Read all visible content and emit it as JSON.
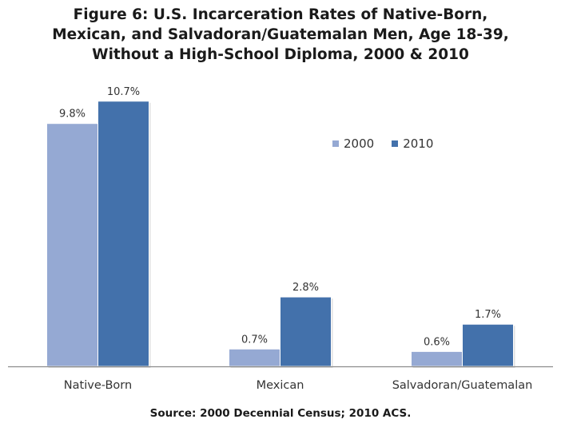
{
  "chart_data": {
    "type": "bar",
    "title_lines": [
      "Figure 6: U.S. Incarceration Rates of Native-Born,",
      "Mexican, and Salvadoran/Guatemalan Men, Age 18-39,",
      "Without a High-School Diploma, 2000 & 2010"
    ],
    "categories": [
      "Native-Born",
      "Mexican",
      "Salvadoran/Guatemalan"
    ],
    "series": [
      {
        "name": "2000",
        "values": [
          9.8,
          0.7,
          0.6
        ],
        "labels": [
          "9.8%",
          "0.7%",
          "0.6%"
        ],
        "color": "#95a9d3"
      },
      {
        "name": "2010",
        "values": [
          10.7,
          2.8,
          1.7
        ],
        "labels": [
          "10.7%",
          "2.8%",
          "1.7%"
        ],
        "color": "#4371ab"
      }
    ],
    "xlabel": "",
    "ylabel": "",
    "ylim": [
      0,
      11.5
    ],
    "grid": false,
    "legend_position": "top-right",
    "source": "Source: 2000 Decennial Census; 2010 ACS."
  }
}
